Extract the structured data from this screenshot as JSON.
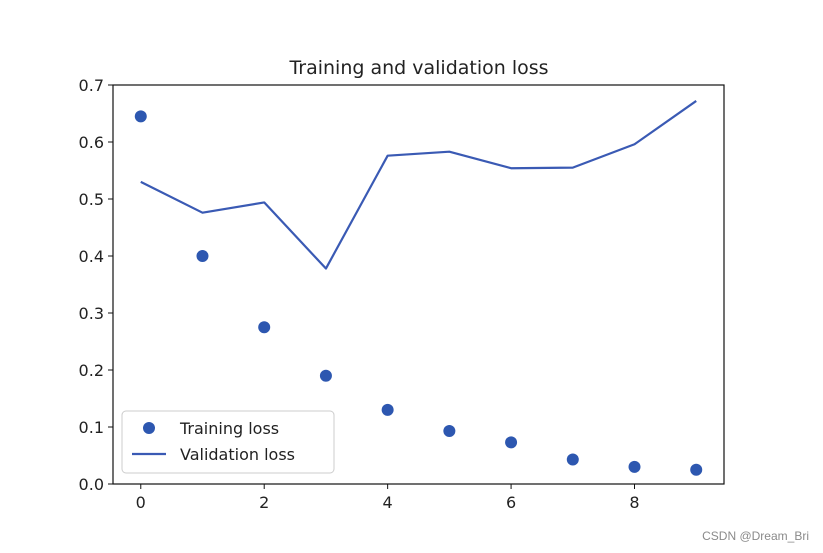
{
  "chart_data": {
    "type": "line",
    "title": "Training and validation loss",
    "xlabel": "",
    "ylabel": "",
    "xlim": [
      -0.45,
      9.45
    ],
    "ylim": [
      0.0,
      0.7
    ],
    "x_ticks": [
      0,
      2,
      4,
      6,
      8
    ],
    "x_tick_labels": [
      "0",
      "2",
      "4",
      "6",
      "8"
    ],
    "y_ticks": [
      0.0,
      0.1,
      0.2,
      0.3,
      0.4,
      0.5,
      0.6,
      0.7
    ],
    "y_tick_labels": [
      "0.0",
      "0.1",
      "0.2",
      "0.3",
      "0.4",
      "0.5",
      "0.6",
      "0.7"
    ],
    "grid": false,
    "legend_position": "bottom-left",
    "series": [
      {
        "name": "Training loss",
        "style": "scatter",
        "color": "#2d57b0",
        "x": [
          0,
          1,
          2,
          3,
          4,
          5,
          6,
          7,
          8,
          9
        ],
        "values": [
          0.645,
          0.4,
          0.275,
          0.19,
          0.13,
          0.093,
          0.073,
          0.043,
          0.03,
          0.025
        ]
      },
      {
        "name": "Validation loss",
        "style": "line",
        "color": "#3a5ab4",
        "x": [
          0,
          1,
          2,
          3,
          4,
          5,
          6,
          7,
          8,
          9
        ],
        "values": [
          0.53,
          0.476,
          0.494,
          0.378,
          0.576,
          0.583,
          0.554,
          0.555,
          0.596,
          0.672
        ]
      }
    ]
  },
  "watermark": "CSDN @Dream_Bri"
}
